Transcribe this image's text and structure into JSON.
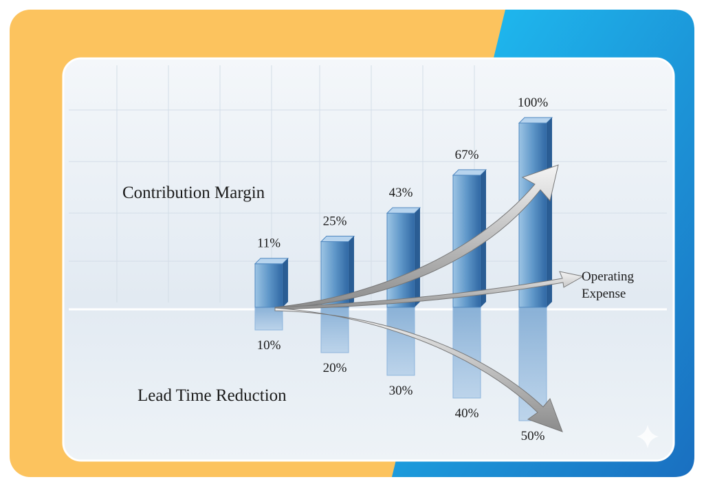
{
  "chart_data": {
    "type": "bar",
    "annotation": "Operating Expense",
    "series": [
      {
        "name": "Contribution Margin",
        "color": "#4f87bf",
        "values": [
          11,
          25,
          43,
          67,
          100
        ],
        "value_labels": [
          "11%",
          "25%",
          "43%",
          "67%",
          "100%"
        ]
      },
      {
        "name": "Lead Time Reduction",
        "color": "#8db4dc",
        "values": [
          10,
          20,
          30,
          40,
          50
        ],
        "value_labels": [
          "10%",
          "20%",
          "30%",
          "40%",
          "50%"
        ]
      }
    ]
  }
}
